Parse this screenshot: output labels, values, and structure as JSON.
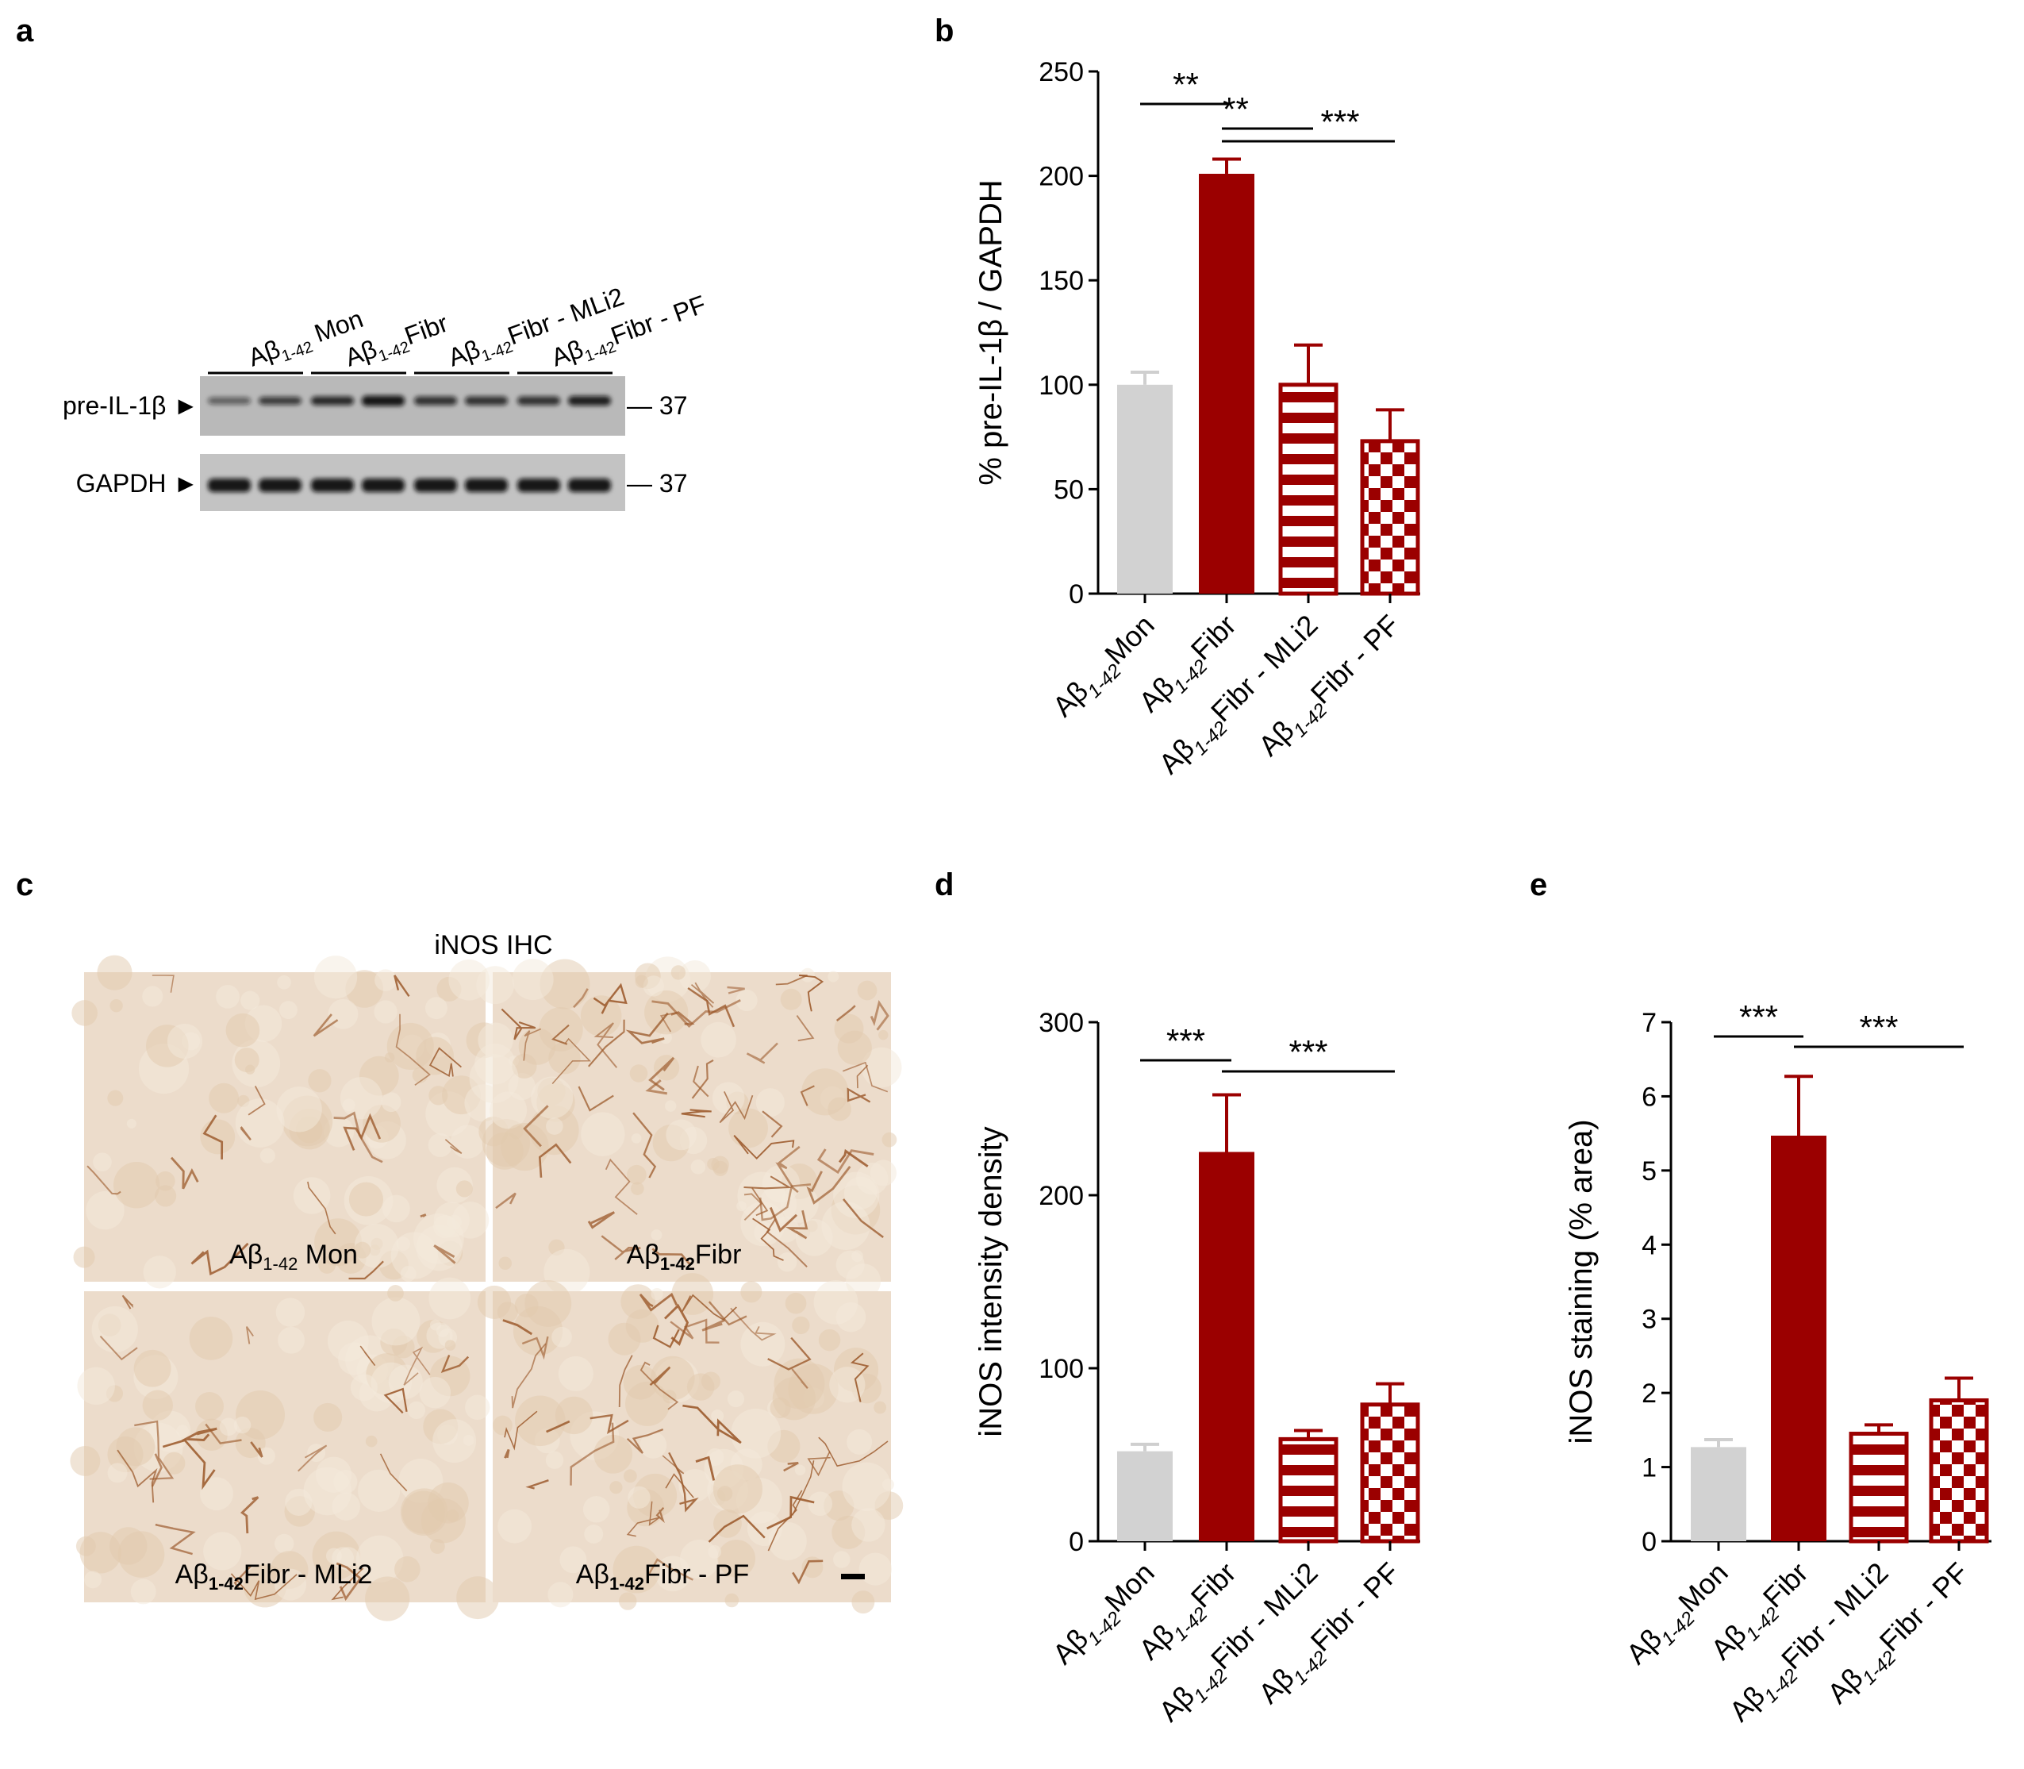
{
  "panels": {
    "a": "a",
    "b": "b",
    "c": "c",
    "d": "d",
    "e": "e"
  },
  "colors": {
    "mon": "#d2d2d2",
    "fibr": "#9b0000",
    "stripe_bg": "#ffffff",
    "blot_bg": "#b9b9b9",
    "ihc_bg": "#ecdccb",
    "ihc_stain": "#9c5a2c"
  },
  "groups": {
    "prefix": "Aβ",
    "subscript": "1-42",
    "mon": "Mon",
    "fibr": "Fibr",
    "mli2": "Fibr - MLi2",
    "pf": "Fibr - PF"
  },
  "western_blot": {
    "lanes": [
      {
        "prefix": "Aβ",
        "sub": "1-42",
        "text": " Mon"
      },
      {
        "prefix": "Aβ",
        "sub": "1-42",
        "text": "Fibr"
      },
      {
        "prefix": "Aβ",
        "sub": "1-42",
        "text": "Fibr - MLi2"
      },
      {
        "prefix": "Aβ",
        "sub": "1-42",
        "text": "Fibr - PF"
      }
    ],
    "rows": [
      {
        "label": "pre-IL-1β ►",
        "marker": "— 37"
      },
      {
        "label": "GAPDH ►",
        "marker": "— 37"
      }
    ]
  },
  "ihc": {
    "title": "iNOS IHC",
    "tiles": [
      {
        "prefix": "Aβ",
        "sub": "1-42",
        "text": " Mon"
      },
      {
        "prefix": "Aβ",
        "sub": "1-42",
        "text": "Fibr"
      },
      {
        "prefix": "Aβ",
        "sub": "1-42",
        "text": "Fibr - MLi2"
      },
      {
        "prefix": "Aβ",
        "sub": "1-42",
        "text": "Fibr - PF"
      }
    ]
  },
  "chart_data": [
    {
      "id": "b",
      "type": "bar",
      "title": "",
      "xlabel": "",
      "ylabel": "% pre-IL-1β / GAPDH",
      "ylim": [
        0,
        250
      ],
      "yticks": [
        0,
        50,
        100,
        150,
        200,
        250
      ],
      "categories": [
        "Aβ1-42Mon",
        "Aβ1-42Fibr",
        "Aβ1-42Fibr - MLi2",
        "Aβ1-42Fibr - PF"
      ],
      "values": [
        100,
        201,
        100,
        73
      ],
      "errors": [
        6,
        7,
        19,
        15
      ],
      "patterns": [
        "solid-grey",
        "solid-red",
        "stripes",
        "checker"
      ],
      "significance": [
        {
          "from": 0,
          "to": 1,
          "label": "**"
        },
        {
          "from": 1,
          "to": 2,
          "label": "**"
        },
        {
          "from": 1,
          "to": 3,
          "label": "***"
        }
      ]
    },
    {
      "id": "d",
      "type": "bar",
      "title": "",
      "xlabel": "",
      "ylabel": "iNOS intensity density",
      "ylim": [
        0,
        300
      ],
      "yticks": [
        0,
        100,
        200,
        300
      ],
      "categories": [
        "Aβ1-42Mon",
        "Aβ1-42Fibr",
        "Aβ1-42Fibr - MLi2",
        "Aβ1-42Fibr - PF"
      ],
      "values": [
        52,
        225,
        59,
        79
      ],
      "errors": [
        4,
        33,
        5,
        12
      ],
      "patterns": [
        "solid-grey",
        "solid-red",
        "stripes",
        "checker"
      ],
      "significance": [
        {
          "from": 0,
          "to": 1,
          "label": "***"
        },
        {
          "from": 1,
          "to": 3,
          "label": "***"
        }
      ]
    },
    {
      "id": "e",
      "type": "bar",
      "title": "",
      "xlabel": "",
      "ylabel": "iNOS staining (% area)",
      "ylim": [
        0,
        7
      ],
      "yticks": [
        0,
        1,
        2,
        3,
        4,
        5,
        6,
        7
      ],
      "categories": [
        "Aβ1-42Mon",
        "Aβ1-42Fibr",
        "Aβ1-42Fibr - MLi2",
        "Aβ1-42Fibr - PF"
      ],
      "values": [
        1.27,
        5.47,
        1.45,
        1.9
      ],
      "errors": [
        0.1,
        0.8,
        0.12,
        0.3
      ],
      "patterns": [
        "solid-grey",
        "solid-red",
        "stripes",
        "checker"
      ],
      "significance": [
        {
          "from": 0,
          "to": 1,
          "label": "***"
        },
        {
          "from": 1,
          "to": 3,
          "label": "***"
        }
      ]
    }
  ]
}
